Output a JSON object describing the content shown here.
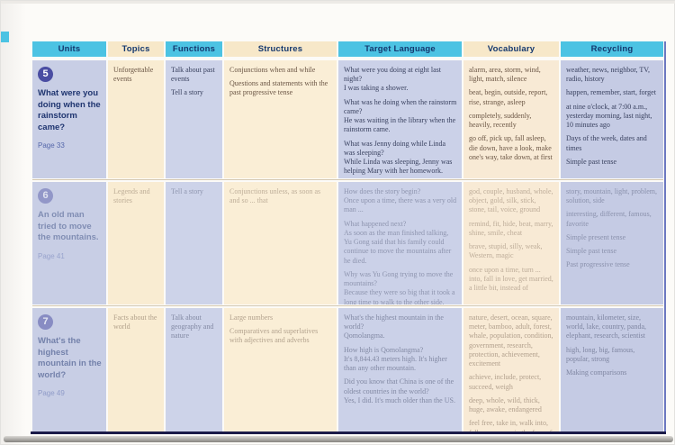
{
  "document": {
    "type": "textbook-contents-table",
    "accent_cyan": "#4cc3e3",
    "accent_navy": "#14386e"
  },
  "columns": [
    {
      "label": "Units",
      "style": "cyan"
    },
    {
      "label": "Topics",
      "style": "cream"
    },
    {
      "label": "Functions",
      "style": "cyan"
    },
    {
      "label": "Structures",
      "style": "cream"
    },
    {
      "label": "Target Language",
      "style": "cyan"
    },
    {
      "label": "Vocabulary",
      "style": "cream"
    },
    {
      "label": "Recycling",
      "style": "cyan"
    }
  ],
  "units": [
    {
      "number": "5",
      "title": "What were you doing when the rainstorm came?",
      "page": "Page 33",
      "topics": [
        "Unforgettable events"
      ],
      "functions": [
        "Talk about past events",
        "Tell a story"
      ],
      "structures": [
        "Conjunctions when and while",
        "Questions and statements with the past progressive tense"
      ],
      "target_language": [
        "What were you doing at eight last night?\nI was taking a shower.",
        "What was he doing when the rainstorm came?\nHe was waiting in the library when the rainstorm came.",
        "What was Jenny doing while Linda was sleeping?\nWhile Linda was sleeping, Jenny was helping Mary with her homework."
      ],
      "vocabulary": [
        "alarm, area, storm, wind, light, match, silence",
        "beat, begin, outside, report, rise, strange, asleep",
        "completely, suddenly, heavily, recently",
        "go off, pick up, fall asleep, die down, have a look, make one's way, take down, at first"
      ],
      "recycling": [
        "weather, news, neighbor, TV, radio, history",
        "happen, remember, start, forget",
        "at nine o'clock, at 7:00 a.m., yesterday morning, last night, 10 minutes ago",
        "Days of the week, dates and times",
        "Simple past tense"
      ]
    },
    {
      "number": "6",
      "title": "An old man tried to move the mountains.",
      "page": "Page 41",
      "topics": [
        "Legends and stories"
      ],
      "functions": [
        "Tell a story"
      ],
      "structures": [
        "Conjunctions unless, as soon as and so ... that"
      ],
      "target_language": [
        "How does the story begin?\nOnce upon a time, there was a very old man ...",
        "What happened next?\nAs soon as the man finished talking, Yu Gong said that his family could continue to move the mountains after he died.",
        "Why was Yu Gong trying to move the mountains?\nBecause they were so big that it took a long time to walk to the other side."
      ],
      "vocabulary": [
        "god, couple, husband, whole, object, gold, silk, stick, stone, tail, voice, ground",
        "remind, fit, hide, beat, marry, shine, smile, cheat",
        "brave, stupid, silly, weak, Western, magic",
        "once upon a time, turn ... into, fall in love, get married, a little bit, instead of"
      ],
      "recycling": [
        "story, mountain, light, problem, solution, side",
        "interesting, different, famous, favorite",
        "Simple present tense",
        "Simple past tense",
        "Past progressive tense"
      ]
    },
    {
      "number": "7",
      "title": "What's the highest mountain in the world?",
      "page": "Page 49",
      "topics": [
        "Facts about the world"
      ],
      "functions": [
        "Talk about geography and nature"
      ],
      "structures": [
        "Large numbers",
        "Comparatives and superlatives with adjectives and adverbs"
      ],
      "target_language": [
        "What's the highest mountain in the world?\nQomolangma.",
        "How high is Qomolangma?\nIt's 8,844.43 meters high. It's higher than any other mountain.",
        "Did you know that China is one of the oldest countries in the world?\nYes, I did. It's much older than the US."
      ],
      "vocabulary": [
        "nature, desert, ocean, square, meter, bamboo, adult, forest, whale, population, condition, government, research, protection, achievement, excitement",
        "achieve, include, protect, succeed, weigh",
        "deep, whole, wild, thick, huge, awake, endangered",
        "feel free, take in, walk into, fall over, or so, in the face of, at birth, up to"
      ],
      "recycling": [
        "mountain, kilometer, size, world, lake, country, panda, elephant, research, scientist",
        "high, long, big, famous, popular, strong",
        "Making comparisons"
      ]
    }
  ]
}
